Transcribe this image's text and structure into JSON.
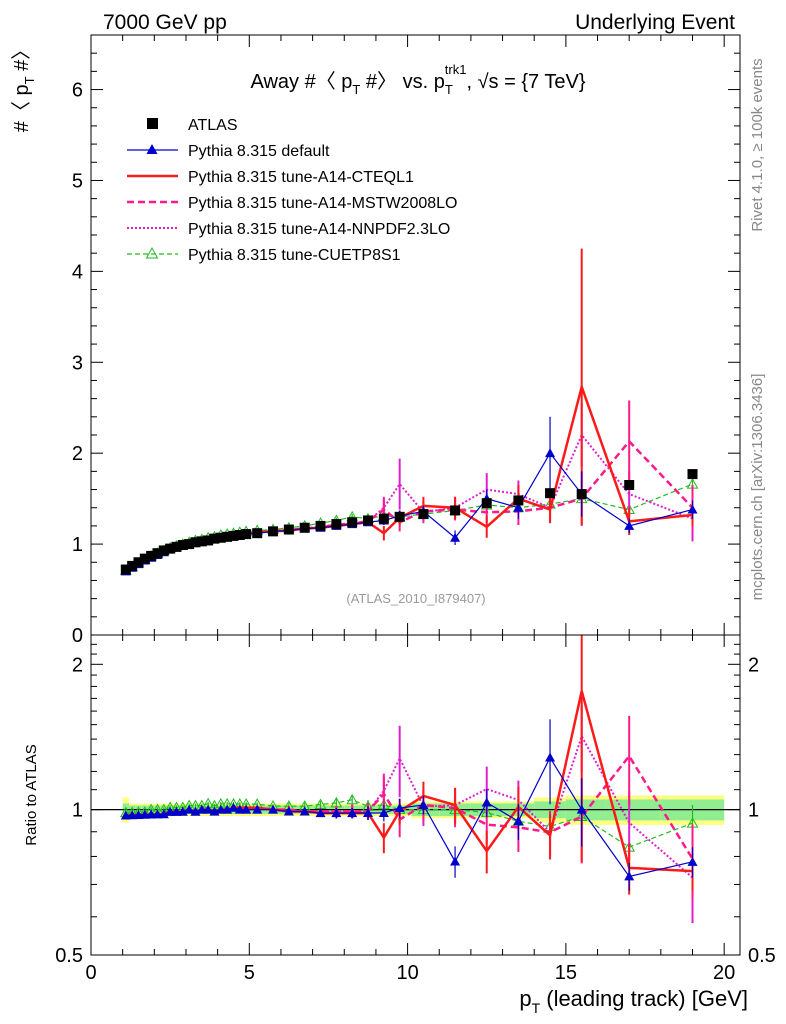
{
  "header": {
    "left": "7000 GeV pp",
    "right": "Underlying Event"
  },
  "side_labels": {
    "rivet": "Rivet 4.1.0, ≥ 100k events",
    "mcplots": "mcplots.cern.ch [arXiv:1306.3436]"
  },
  "colors": {
    "atlas": "#000000",
    "default": "#0000cc",
    "cteql1": "#ff1a1a",
    "mstw": "#ff1a8c",
    "nnpdf": "#e020d0",
    "cuetp": "#22bb22",
    "band_outer": "#ffff80",
    "band_inner": "#90ee90"
  },
  "chart_data": [
    {
      "type": "line",
      "title": "Away #〈 p_T #〉 vs. p_T^trk1, √s = {7 TeV}",
      "title_parts": {
        "a": "Away #〈 p",
        "b": "T",
        "c": " #〉 vs. p",
        "d": "T",
        "e": "trk1",
        "f": ", √s = {7 TeV}"
      },
      "ylabel": "#〈 p_T #〉",
      "ylabel_parts": {
        "a": "#〈 p",
        "b": "T",
        "c": " #〉"
      },
      "xlim": [
        0,
        20.5
      ],
      "ylim": [
        0,
        6.6
      ],
      "yticks": [
        0,
        1,
        2,
        3,
        4,
        5,
        6
      ],
      "yticklabels": [
        "0",
        "1",
        "2",
        "3",
        "4",
        "5",
        "6"
      ],
      "watermark": "(ATLAS_2010_I879407)",
      "legend": [
        "ATLAS",
        "Pythia 8.315 default",
        "Pythia 8.315 tune-A14-CTEQL1",
        "Pythia 8.315 tune-A14-MSTW2008LO",
        "Pythia 8.315 tune-A14-NNPDF2.3LO",
        "Pythia 8.315 tune-CUETP8S1"
      ],
      "x": [
        1.1,
        1.3,
        1.5,
        1.7,
        1.9,
        2.1,
        2.3,
        2.5,
        2.7,
        2.9,
        3.1,
        3.3,
        3.5,
        3.7,
        3.9,
        4.1,
        4.3,
        4.5,
        4.7,
        4.9,
        5.25,
        5.75,
        6.25,
        6.75,
        7.25,
        7.75,
        8.25,
        8.75,
        9.25,
        9.75,
        10.5,
        11.5,
        12.5,
        13.5,
        14.5,
        15.5,
        17.0,
        19.0
      ],
      "series": [
        {
          "name": "ATLAS",
          "style": "marker-square",
          "values": [
            0.72,
            0.76,
            0.8,
            0.84,
            0.87,
            0.9,
            0.93,
            0.95,
            0.97,
            0.99,
            1.0,
            1.02,
            1.03,
            1.04,
            1.06,
            1.07,
            1.08,
            1.09,
            1.1,
            1.11,
            1.12,
            1.14,
            1.16,
            1.18,
            1.2,
            1.22,
            1.24,
            1.26,
            1.28,
            1.3,
            1.33,
            1.37,
            1.45,
            1.48,
            1.56,
            1.55,
            1.65,
            1.77
          ]
        },
        {
          "name": "Pythia 8.315 default",
          "style": "line-triangle",
          "values": [
            0.7,
            0.74,
            0.78,
            0.82,
            0.85,
            0.88,
            0.91,
            0.94,
            0.96,
            0.98,
            1.0,
            1.01,
            1.03,
            1.04,
            1.05,
            1.07,
            1.08,
            1.1,
            1.1,
            1.11,
            1.12,
            1.14,
            1.15,
            1.17,
            1.18,
            1.2,
            1.22,
            1.24,
            1.26,
            1.31,
            1.36,
            1.07,
            1.5,
            1.4,
            2.0,
            1.55,
            1.2,
            1.38
          ],
          "errors": [
            0.01,
            0.01,
            0.01,
            0.01,
            0.01,
            0.01,
            0.01,
            0.01,
            0.01,
            0.01,
            0.01,
            0.01,
            0.01,
            0.01,
            0.01,
            0.01,
            0.01,
            0.01,
            0.01,
            0.01,
            0.01,
            0.01,
            0.01,
            0.02,
            0.02,
            0.03,
            0.03,
            0.04,
            0.05,
            0.06,
            0.06,
            0.08,
            0.1,
            0.12,
            0.4,
            0.25,
            0.08,
            0.1
          ]
        },
        {
          "name": "Pythia 8.315 tune-A14-CTEQL1",
          "style": "line-solid",
          "values": [
            0.7,
            0.74,
            0.78,
            0.82,
            0.85,
            0.88,
            0.91,
            0.94,
            0.96,
            0.98,
            1.0,
            1.01,
            1.03,
            1.04,
            1.05,
            1.07,
            1.08,
            1.1,
            1.11,
            1.12,
            1.13,
            1.14,
            1.15,
            1.17,
            1.18,
            1.2,
            1.22,
            1.24,
            1.12,
            1.29,
            1.42,
            1.4,
            1.19,
            1.5,
            1.38,
            2.73,
            1.25,
            1.32
          ],
          "errors": [
            0.01,
            0.01,
            0.01,
            0.01,
            0.01,
            0.01,
            0.01,
            0.01,
            0.01,
            0.01,
            0.01,
            0.01,
            0.01,
            0.01,
            0.01,
            0.01,
            0.01,
            0.01,
            0.01,
            0.01,
            0.01,
            0.01,
            0.02,
            0.02,
            0.02,
            0.03,
            0.03,
            0.04,
            0.08,
            0.08,
            0.1,
            0.12,
            0.12,
            0.15,
            0.15,
            1.52,
            0.15,
            0.12
          ]
        },
        {
          "name": "Pythia 8.315 tune-A14-MSTW2008LO",
          "style": "line-dashed",
          "values": [
            0.7,
            0.74,
            0.78,
            0.82,
            0.85,
            0.88,
            0.91,
            0.94,
            0.96,
            0.98,
            1.0,
            1.01,
            1.03,
            1.04,
            1.05,
            1.07,
            1.08,
            1.1,
            1.11,
            1.12,
            1.13,
            1.14,
            1.16,
            1.17,
            1.19,
            1.21,
            1.23,
            1.25,
            1.38,
            1.24,
            1.36,
            1.38,
            1.35,
            1.36,
            1.4,
            1.5,
            2.13,
            1.4
          ],
          "errors": [
            0.01,
            0.01,
            0.01,
            0.01,
            0.01,
            0.01,
            0.01,
            0.01,
            0.01,
            0.01,
            0.01,
            0.01,
            0.01,
            0.01,
            0.01,
            0.01,
            0.01,
            0.01,
            0.01,
            0.01,
            0.01,
            0.01,
            0.02,
            0.02,
            0.02,
            0.03,
            0.04,
            0.05,
            0.12,
            0.1,
            0.1,
            0.12,
            0.12,
            0.15,
            0.15,
            0.3,
            0.45,
            0.25
          ]
        },
        {
          "name": "Pythia 8.315 tune-A14-NNPDF2.3LO",
          "style": "line-dotted",
          "values": [
            0.7,
            0.74,
            0.78,
            0.82,
            0.85,
            0.88,
            0.91,
            0.94,
            0.96,
            0.98,
            1.0,
            1.01,
            1.03,
            1.04,
            1.05,
            1.07,
            1.08,
            1.1,
            1.11,
            1.12,
            1.13,
            1.14,
            1.16,
            1.17,
            1.19,
            1.21,
            1.23,
            1.25,
            1.4,
            1.66,
            1.35,
            1.4,
            1.6,
            1.55,
            1.4,
            2.2,
            1.55,
            1.28
          ],
          "errors": [
            0.01,
            0.01,
            0.01,
            0.01,
            0.01,
            0.01,
            0.01,
            0.01,
            0.01,
            0.01,
            0.01,
            0.01,
            0.01,
            0.01,
            0.01,
            0.01,
            0.01,
            0.01,
            0.01,
            0.01,
            0.01,
            0.01,
            0.02,
            0.02,
            0.02,
            0.03,
            0.04,
            0.05,
            0.12,
            0.28,
            0.12,
            0.12,
            0.18,
            0.15,
            0.15,
            0.35,
            0.25,
            0.25
          ]
        },
        {
          "name": "Pythia 8.315 tune-CUETP8S1",
          "style": "line-dashed-open-triangle",
          "values": [
            0.71,
            0.75,
            0.79,
            0.83,
            0.87,
            0.9,
            0.93,
            0.96,
            0.98,
            1.0,
            1.02,
            1.04,
            1.05,
            1.07,
            1.08,
            1.1,
            1.11,
            1.12,
            1.13,
            1.14,
            1.15,
            1.16,
            1.18,
            1.2,
            1.23,
            1.26,
            1.3,
            1.28,
            1.31,
            1.3,
            1.33,
            1.37,
            1.43,
            1.4,
            1.44,
            1.5,
            1.38,
            1.66
          ],
          "errors": [
            0.01,
            0.01,
            0.01,
            0.01,
            0.01,
            0.01,
            0.01,
            0.01,
            0.01,
            0.01,
            0.01,
            0.01,
            0.01,
            0.01,
            0.01,
            0.01,
            0.01,
            0.01,
            0.01,
            0.01,
            0.01,
            0.01,
            0.02,
            0.02,
            0.02,
            0.03,
            0.03,
            0.04,
            0.05,
            0.05,
            0.06,
            0.06,
            0.08,
            0.08,
            0.1,
            0.12,
            0.12,
            0.15
          ]
        }
      ]
    },
    {
      "type": "line",
      "title": "Ratio to ATLAS",
      "ylabel": "Ratio to ATLAS",
      "xlabel": "p_T (leading track) [GeV]",
      "xlabel_parts": {
        "a": "p",
        "b": "T",
        "c": " (leading track) [GeV]"
      },
      "xlim": [
        0,
        20.5
      ],
      "ylim": [
        0.5,
        2.3
      ],
      "scale": "log",
      "yticks": [
        0.5,
        1,
        2
      ],
      "yticklabels": [
        "0.5",
        "1",
        "2"
      ],
      "xticks": [
        0,
        5,
        10,
        15,
        20
      ],
      "xticklabels": [
        "0",
        "5",
        "10",
        "15",
        "20"
      ],
      "reference_line": 1,
      "band_inner_halfwidth": [
        0.03,
        0.02,
        0.02,
        0.02,
        0.02,
        0.02,
        0.02,
        0.02,
        0.02,
        0.02,
        0.02,
        0.02,
        0.02,
        0.02,
        0.02,
        0.02,
        0.02,
        0.02,
        0.02,
        0.02,
        0.02,
        0.02,
        0.02,
        0.02,
        0.02,
        0.02,
        0.02,
        0.02,
        0.02,
        0.02,
        0.03,
        0.03,
        0.03,
        0.03,
        0.04,
        0.05,
        0.05,
        0.05
      ],
      "band_outer_halfwidth": [
        0.06,
        0.03,
        0.03,
        0.03,
        0.03,
        0.03,
        0.03,
        0.03,
        0.03,
        0.03,
        0.03,
        0.03,
        0.03,
        0.03,
        0.03,
        0.03,
        0.03,
        0.03,
        0.03,
        0.03,
        0.03,
        0.03,
        0.03,
        0.03,
        0.03,
        0.03,
        0.03,
        0.03,
        0.03,
        0.03,
        0.04,
        0.04,
        0.04,
        0.04,
        0.06,
        0.07,
        0.07,
        0.07
      ]
    }
  ]
}
